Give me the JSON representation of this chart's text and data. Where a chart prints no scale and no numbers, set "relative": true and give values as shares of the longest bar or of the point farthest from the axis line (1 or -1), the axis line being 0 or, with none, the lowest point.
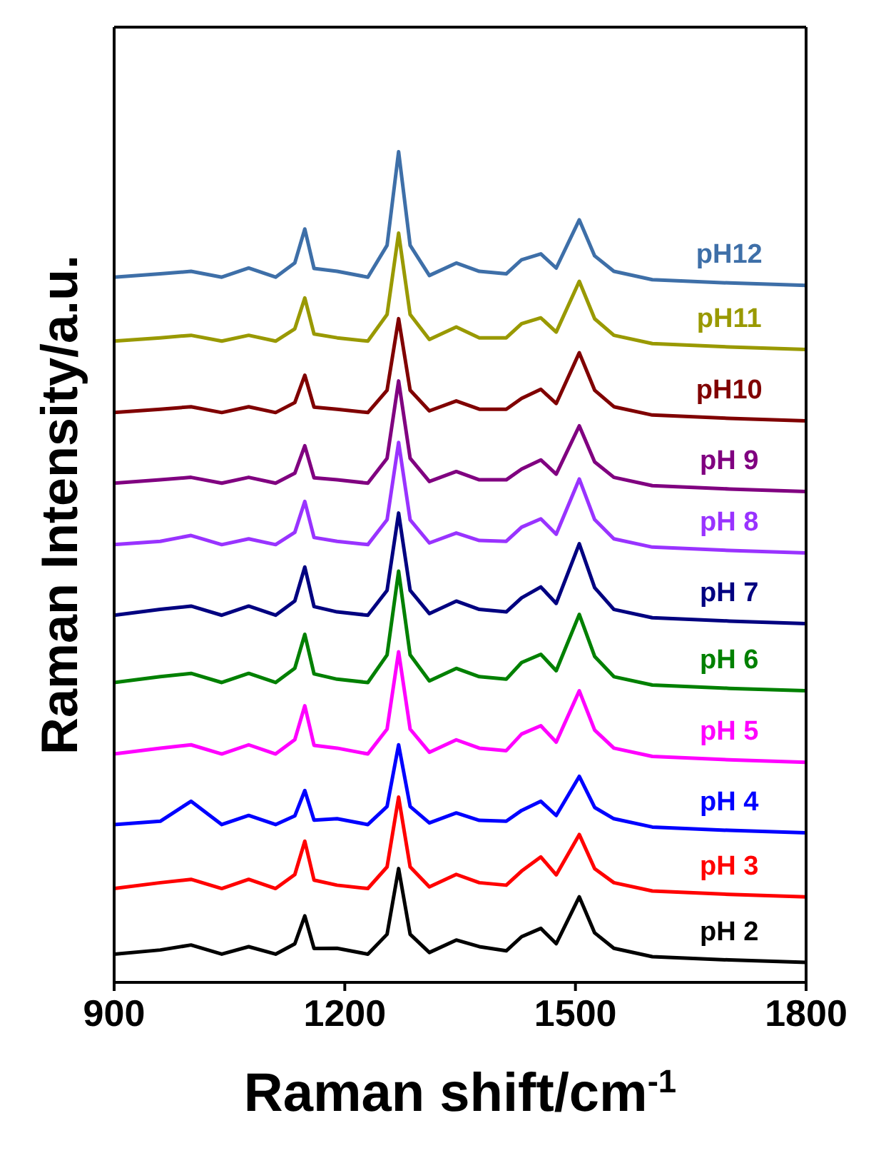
{
  "chart_data": {
    "type": "line",
    "relative": true,
    "xlabel": "Raman shift/cm$^{-1}$",
    "ylabel": "Raman Intensity/a.u.",
    "xlim": [
      900,
      1800
    ],
    "xticks": [
      900,
      1200,
      1500,
      1800
    ],
    "marker": "none",
    "line_style": "solid",
    "x": [
      900,
      960,
      1000,
      1040,
      1075,
      1110,
      1135,
      1148,
      1160,
      1190,
      1230,
      1255,
      1270,
      1285,
      1310,
      1345,
      1375,
      1410,
      1430,
      1455,
      1475,
      1505,
      1525,
      1550,
      1600,
      1700,
      1800
    ],
    "series": [
      {
        "name": "pH 2",
        "color": "#000000",
        "values": [
          0.034,
          0.039,
          0.045,
          0.034,
          0.043,
          0.034,
          0.0464,
          0.08,
          0.0408,
          0.041,
          0.034,
          0.0579,
          0.137,
          0.0579,
          0.036,
          0.051,
          0.043,
          0.038,
          0.055,
          0.065,
          0.0466,
          0.103,
          0.0596,
          0.041,
          0.031,
          0.027,
          0.024
        ]
      },
      {
        "name": "pH 3",
        "color": "#ff0000",
        "values": [
          0.113,
          0.12,
          0.124,
          0.113,
          0.124,
          0.113,
          0.1298,
          0.17,
          0.1231,
          0.117,
          0.113,
          0.139,
          0.223,
          0.139,
          0.115,
          0.13,
          0.12,
          0.117,
          0.134,
          0.151,
          0.1294,
          0.178,
          0.1368,
          0.12,
          0.11,
          0.106,
          0.103
        ]
      },
      {
        "name": "pH 4",
        "color": "#0000ff",
        "values": [
          0.19,
          0.194,
          0.218,
          0.19,
          0.201,
          0.19,
          0.2004,
          0.231,
          0.1953,
          0.197,
          0.19,
          0.2118,
          0.286,
          0.2118,
          0.192,
          0.204,
          0.195,
          0.194,
          0.207,
          0.218,
          0.2009,
          0.248,
          0.2106,
          0.197,
          0.187,
          0.183,
          0.18
        ]
      },
      {
        "name": "pH 5",
        "color": "#ff00ff",
        "values": [
          0.275,
          0.282,
          0.286,
          0.275,
          0.286,
          0.275,
          0.2922,
          0.333,
          0.2854,
          0.282,
          0.275,
          0.3049,
          0.398,
          0.3049,
          0.277,
          0.292,
          0.282,
          0.279,
          0.299,
          0.309,
          0.2892,
          0.351,
          0.3037,
          0.282,
          0.272,
          0.268,
          0.265
        ]
      },
      {
        "name": "pH 6",
        "color": "#008000",
        "values": [
          0.361,
          0.368,
          0.372,
          0.361,
          0.372,
          0.361,
          0.3782,
          0.419,
          0.3714,
          0.365,
          0.361,
          0.3942,
          0.495,
          0.3942,
          0.363,
          0.378,
          0.368,
          0.365,
          0.385,
          0.395,
          0.3752,
          0.443,
          0.3924,
          0.368,
          0.358,
          0.354,
          0.351
        ]
      },
      {
        "name": "pH 7",
        "color": "#000080",
        "values": [
          0.442,
          0.449,
          0.453,
          0.442,
          0.453,
          0.442,
          0.4592,
          0.5,
          0.4524,
          0.446,
          0.442,
          0.4719,
          0.565,
          0.4719,
          0.444,
          0.459,
          0.449,
          0.446,
          0.463,
          0.476,
          0.4562,
          0.528,
          0.4752,
          0.449,
          0.439,
          0.435,
          0.432
        ]
      },
      {
        "name": "pH 8",
        "color": "#9933ff",
        "values": [
          0.527,
          0.531,
          0.538,
          0.527,
          0.534,
          0.527,
          0.5418,
          0.579,
          0.5356,
          0.531,
          0.527,
          0.5569,
          0.65,
          0.5569,
          0.529,
          0.541,
          0.532,
          0.531,
          0.548,
          0.558,
          0.5396,
          0.606,
          0.5571,
          0.534,
          0.524,
          0.52,
          0.517
        ]
      },
      {
        "name": "pH 9",
        "color": "#800080",
        "values": [
          0.601,
          0.605,
          0.608,
          0.601,
          0.608,
          0.601,
          0.613,
          0.646,
          0.6075,
          0.605,
          0.601,
          0.6309,
          0.724,
          0.6309,
          0.603,
          0.615,
          0.605,
          0.605,
          0.618,
          0.629,
          0.6119,
          0.67,
          0.6266,
          0.608,
          0.598,
          0.594,
          0.591
        ]
      },
      {
        "name": "pH10",
        "color": "#800000",
        "values": [
          0.686,
          0.69,
          0.693,
          0.686,
          0.693,
          0.686,
          0.698,
          0.731,
          0.6925,
          0.69,
          0.686,
          0.7129,
          0.799,
          0.7129,
          0.688,
          0.7,
          0.69,
          0.69,
          0.703,
          0.714,
          0.6969,
          0.758,
          0.7129,
          0.693,
          0.683,
          0.679,
          0.676
        ]
      },
      {
        "name": "pH11",
        "color": "#999900",
        "values": [
          0.772,
          0.776,
          0.779,
          0.772,
          0.779,
          0.772,
          0.7868,
          0.824,
          0.7806,
          0.776,
          0.772,
          0.804,
          0.902,
          0.804,
          0.774,
          0.789,
          0.776,
          0.776,
          0.793,
          0.8,
          0.7829,
          0.844,
          0.7989,
          0.779,
          0.769,
          0.765,
          0.762
        ]
      },
      {
        "name": "pH12",
        "color": "#3e6fa8",
        "values": [
          0.849,
          0.853,
          0.856,
          0.849,
          0.86,
          0.849,
          0.8662,
          0.907,
          0.8594,
          0.856,
          0.849,
          0.8873,
          1,
          0.8873,
          0.851,
          0.866,
          0.856,
          0.853,
          0.87,
          0.877,
          0.8599,
          0.918,
          0.8746,
          0.856,
          0.846,
          0.842,
          0.839
        ]
      }
    ]
  }
}
